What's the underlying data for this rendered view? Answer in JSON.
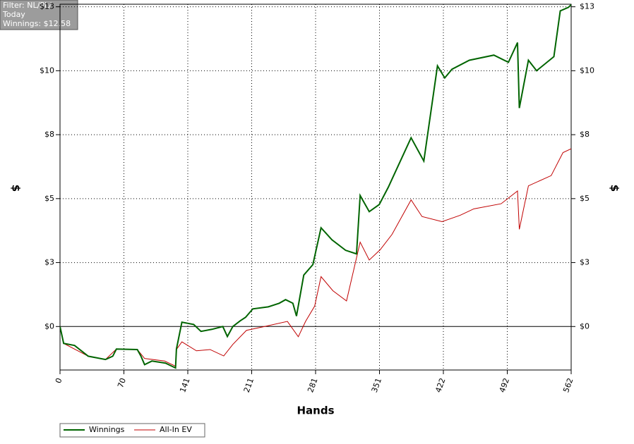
{
  "chart_data": {
    "type": "line",
    "filter_lines": [
      "Filter: NL/PL/",
      "Today",
      "Winnings: $12.58"
    ],
    "x_label": "Hands",
    "y_label": "$",
    "y2_label": "$",
    "xlim": [
      0,
      562
    ],
    "xticks": [
      0,
      {
        "value": 70.25,
        "label": "70"
      },
      {
        "value": 140.5,
        "label": "141"
      },
      {
        "value": 210.75,
        "label": "211"
      },
      281,
      {
        "value": 351.25,
        "label": "351"
      },
      {
        "value": 421.5,
        "label": "422"
      },
      {
        "value": 491.75,
        "label": "492"
      },
      562
    ],
    "ylim": [
      -1.7,
      12.6
    ],
    "yticks": [
      {
        "value": 0,
        "label": "$0"
      },
      {
        "value": 2.5,
        "label": "$3"
      },
      {
        "value": 5,
        "label": "$5"
      },
      {
        "value": 7.5,
        "label": "$8"
      },
      {
        "value": 10,
        "label": "$10"
      },
      {
        "value": 12.5,
        "label": "$13"
      }
    ],
    "y2lim": [
      -1.7,
      12.6
    ],
    "y2ticks": [
      {
        "value": 0,
        "label": "$0"
      },
      {
        "value": 2.5,
        "label": "$3"
      },
      {
        "value": 5,
        "label": "$5"
      },
      {
        "value": 7.5,
        "label": "$8"
      },
      {
        "value": 10,
        "label": "$10"
      },
      {
        "value": 12.5,
        "label": "$13"
      }
    ],
    "grid": true,
    "legend": "bottom-left",
    "series": [
      {
        "name": "Winnings",
        "color": "#006400",
        "x": [
          0,
          4,
          16,
          31,
          50,
          58,
          62,
          85,
          89,
          93,
          101,
          116,
          127,
          128,
          134,
          147,
          155,
          167,
          179,
          184,
          190,
          198,
          204,
          212,
          229,
          241,
          248,
          256,
          260,
          268,
          278,
          287,
          299,
          314,
          326,
          330,
          340,
          351,
          361,
          386,
          400,
          415,
          423,
          431,
          450,
          477,
          493,
          503,
          505,
          515,
          524,
          543,
          550,
          559,
          562
        ],
        "values": [
          0,
          -0.66,
          -0.74,
          -1.16,
          -1.29,
          -1.16,
          -0.88,
          -0.9,
          -1.16,
          -1.49,
          -1.35,
          -1.43,
          -1.62,
          -0.88,
          0.17,
          0.08,
          -0.19,
          -0.11,
          0,
          -0.39,
          0,
          0.22,
          0.36,
          0.69,
          0.77,
          0.91,
          1.05,
          0.91,
          0.41,
          2.01,
          2.42,
          3.86,
          3.39,
          2.98,
          2.84,
          5.12,
          4.49,
          4.77,
          5.45,
          7.38,
          6.47,
          10.19,
          9.72,
          10.06,
          10.41,
          10.61,
          10.33,
          11.1,
          8.54,
          10.41,
          10,
          10.55,
          12.34,
          12.48,
          12.58
        ]
      },
      {
        "name": "All-In EV",
        "color": "#c00000",
        "x": [
          0,
          4,
          31,
          50,
          62,
          85,
          93,
          115,
          127,
          128,
          134,
          150,
          165,
          180,
          190,
          205,
          225,
          250,
          262,
          270,
          280,
          287,
          300,
          315,
          330,
          340,
          352,
          365,
          386,
          398,
          420,
          440,
          455,
          485,
          503,
          505,
          515,
          540,
          553,
          562
        ],
        "values": [
          0,
          -0.66,
          -1.16,
          -1.29,
          -0.88,
          -0.9,
          -1.25,
          -1.35,
          -1.55,
          -0.9,
          -0.6,
          -0.95,
          -0.9,
          -1.15,
          -0.7,
          -0.15,
          0,
          0.2,
          -0.4,
          0.2,
          0.8,
          1.95,
          1.4,
          1.0,
          3.3,
          2.6,
          3.0,
          3.6,
          4.95,
          4.3,
          4.1,
          4.35,
          4.6,
          4.8,
          5.3,
          3.8,
          5.5,
          5.9,
          6.8,
          6.95
        ]
      }
    ]
  }
}
